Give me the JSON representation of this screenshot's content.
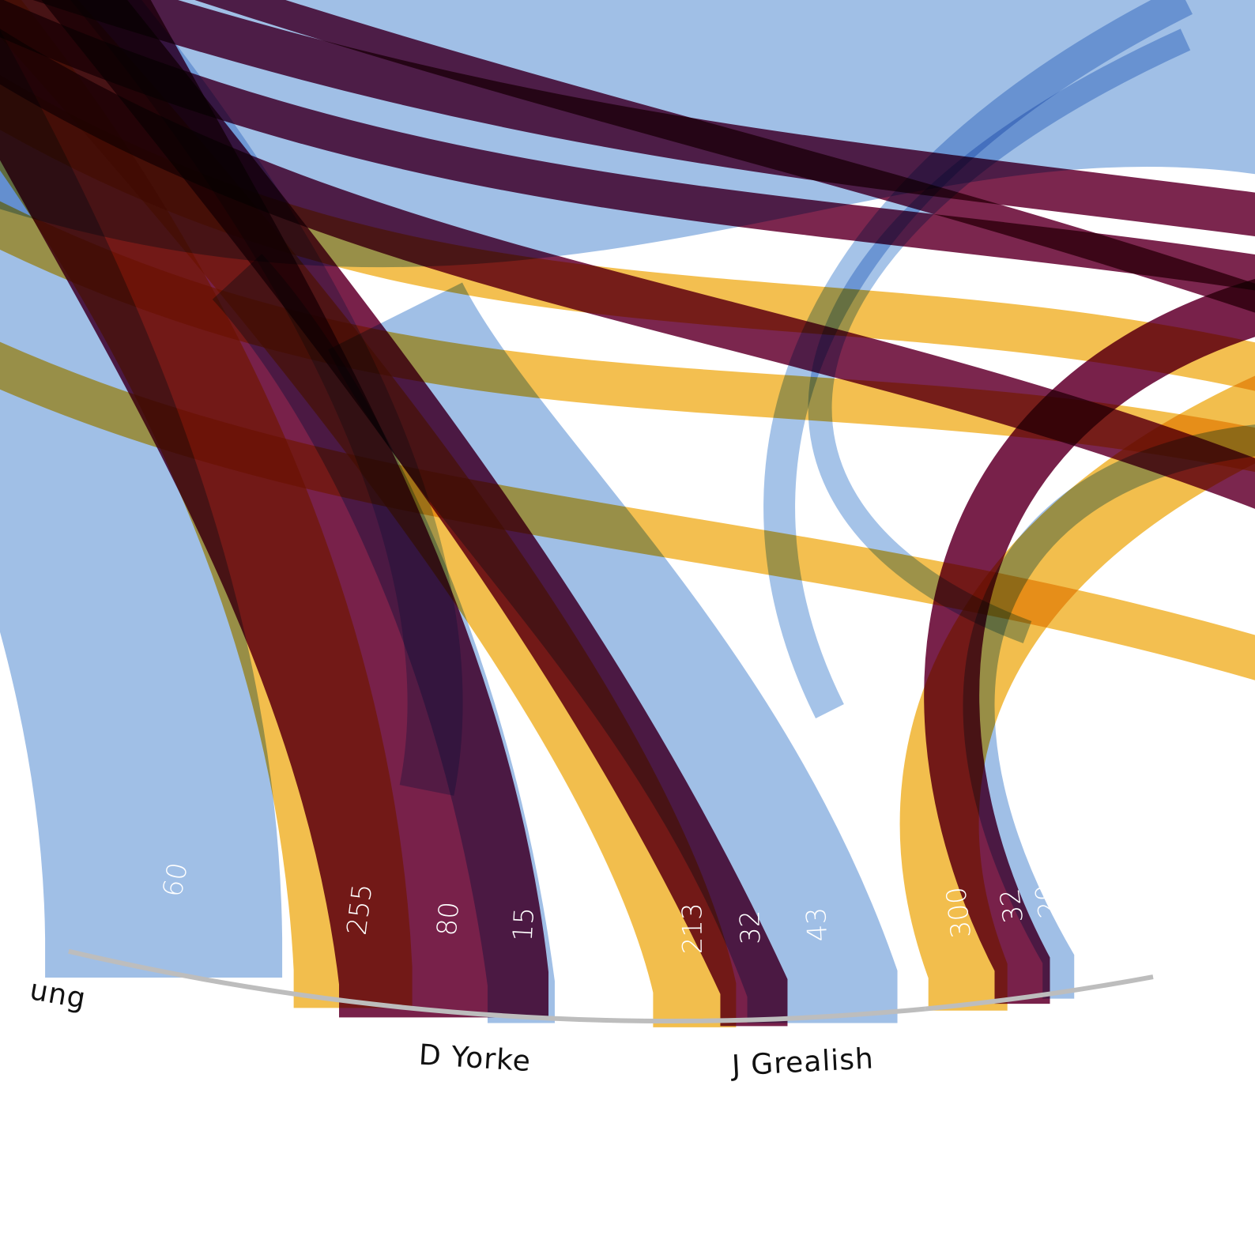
{
  "colors": {
    "blue": "#8FB4E2",
    "claret": "#741A44",
    "gold": "#F2BC47",
    "arc": "#BDBDBD"
  },
  "chart_data": {
    "type": "chord",
    "title": "",
    "segments": [
      {
        "name": "ung",
        "flows": [
          {
            "value": 60,
            "color": "blue"
          }
        ]
      },
      {
        "name": "D Yorke",
        "flows": [
          {
            "value": 255,
            "color": "gold"
          },
          {
            "value": 80,
            "color": "claret"
          },
          {
            "value": 15,
            "color": "blue"
          }
        ]
      },
      {
        "name": "J Grealish",
        "flows": [
          {
            "value": 213,
            "color": "gold"
          },
          {
            "value": 32,
            "color": "claret"
          },
          {
            "value": 43,
            "color": "blue"
          }
        ]
      },
      {
        "name": "",
        "flows": [
          {
            "value": 300,
            "color": "gold"
          },
          {
            "value": 32,
            "color": "claret"
          },
          {
            "value": 20,
            "color": "blue"
          }
        ]
      }
    ]
  }
}
